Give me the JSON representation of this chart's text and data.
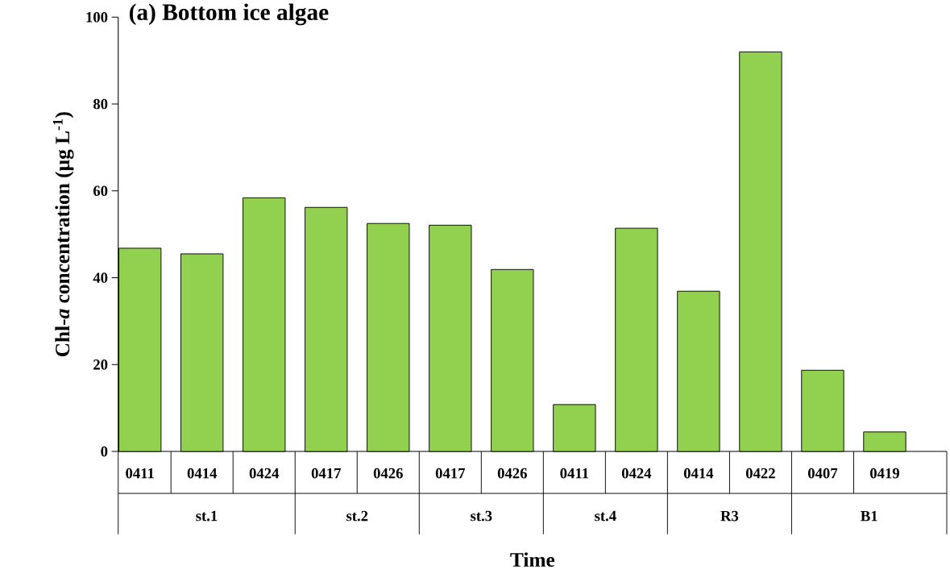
{
  "chart_data": {
    "type": "bar",
    "title": "(a) Bottom ice algae",
    "xlabel": "Time",
    "ylabel": "Chl-*a* concentration (µg L$^{-1}$)",
    "categories": [
      "0411",
      "0414",
      "0424",
      "0417",
      "0426",
      "0417",
      "0426",
      "0411",
      "0424",
      "0414",
      "0422",
      "0407",
      "0419"
    ],
    "values": [
      46.8,
      45.5,
      58.4,
      56.2,
      52.5,
      52.1,
      41.9,
      10.8,
      51.4,
      36.9,
      92.0,
      18.7,
      4.5
    ],
    "color": "#92d050",
    "ylim": [
      0,
      100
    ],
    "yticks": [
      0,
      20,
      40,
      60,
      80,
      100
    ],
    "annotations": [
      "st.1",
      "st.2",
      "st.3",
      "st.4",
      "R3",
      "B1"
    ]
  }
}
